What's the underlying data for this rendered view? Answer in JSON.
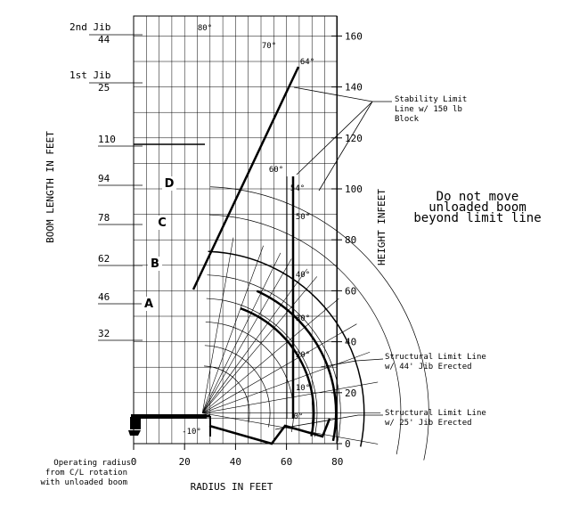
{
  "chart_data": {
    "type": "line",
    "xlabel": "RADIUS IN FEET",
    "ylabel_left": "BOOM LENGTH IN FEET",
    "ylabel_right": "HEIGHT INFEET",
    "x_ticks": [
      "0",
      "20",
      "40",
      "60",
      "80"
    ],
    "y_ticks_right": [
      "0",
      "20",
      "40",
      "60",
      "80",
      "100",
      "120",
      "140",
      "160"
    ],
    "xlim": [
      0,
      80
    ],
    "ylim": [
      -10,
      170
    ],
    "grid": true,
    "boom_lengths": [
      {
        "label": "32",
        "length": 32
      },
      {
        "label": "46",
        "length": 46
      },
      {
        "label": "62",
        "length": 62
      },
      {
        "label": "78",
        "length": 78
      },
      {
        "label": "94",
        "length": 94
      },
      {
        "label": "110",
        "length": 110
      }
    ],
    "jib_lengths": [
      {
        "label": "1st Jib",
        "value_label": "25",
        "length": 135
      },
      {
        "label": "2nd Jib",
        "value_label": "44",
        "length": 154
      }
    ],
    "boom_angles": [
      "80°",
      "70°",
      "64°",
      "60°",
      "54°",
      "50°",
      "40°",
      "30°",
      "20°",
      "10°",
      "0°",
      "-10°"
    ],
    "zones": [
      "A",
      "B",
      "C",
      "D"
    ],
    "annotations": {
      "stability_limit": "Stability Limit Line w/ 150 lb Block",
      "structural_44": "Structural Limit Line w/ 44' Jib Erected",
      "structural_25": "Structural Limit Line w/ 25' Jib Erected",
      "warning": [
        "Do not move",
        "unloaded boom",
        "beyond limit line"
      ],
      "operating_radius": [
        "Operating radius",
        "from C/L rotation",
        "with unloaded boom"
      ]
    },
    "series": [
      {
        "name": "Stability Limit Line",
        "points": [
          [
            24,
            60
          ],
          [
            64,
            150
          ]
        ]
      },
      {
        "name": "Structural Limit Line w/ 44' Jib Erected",
        "points": [
          [
            64,
            103
          ],
          [
            64,
            1
          ]
        ]
      },
      {
        "name": "Structural Limit Line w/ 25' Jib Erected",
        "points": [
          [
            61,
            1
          ],
          [
            61,
            103
          ]
        ]
      }
    ]
  }
}
